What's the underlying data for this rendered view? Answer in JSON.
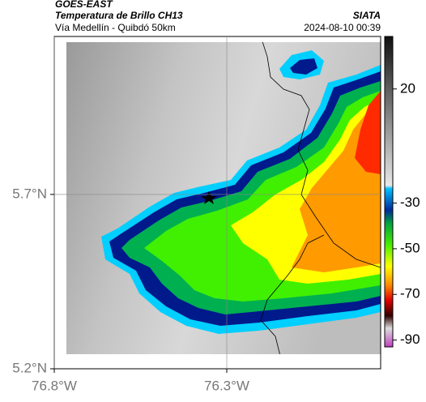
{
  "header": {
    "title": "GOES-EAST",
    "subtitle": "Temperatura de Brillo CH13",
    "region": "Vía Medellín - Quibdó 50km",
    "source": "SIATA",
    "datetime": "2024-08-10 00:39"
  },
  "map": {
    "xlim": [
      -76.8,
      -75.854
    ],
    "ylim": [
      5.2,
      6.153
    ],
    "xticks": [
      {
        "value": -76.8,
        "label": "76.8°W"
      },
      {
        "value": -76.3,
        "label": "76.3°W"
      }
    ],
    "yticks": [
      {
        "value": 5.2,
        "label": "5.2°N"
      },
      {
        "value": 5.7,
        "label": "5.7°N"
      }
    ],
    "grid": true
  },
  "colorbar": {
    "clim": [
      -93,
      43
    ],
    "ticks": [
      20,
      -30,
      -50,
      -70,
      -90
    ]
  }
}
